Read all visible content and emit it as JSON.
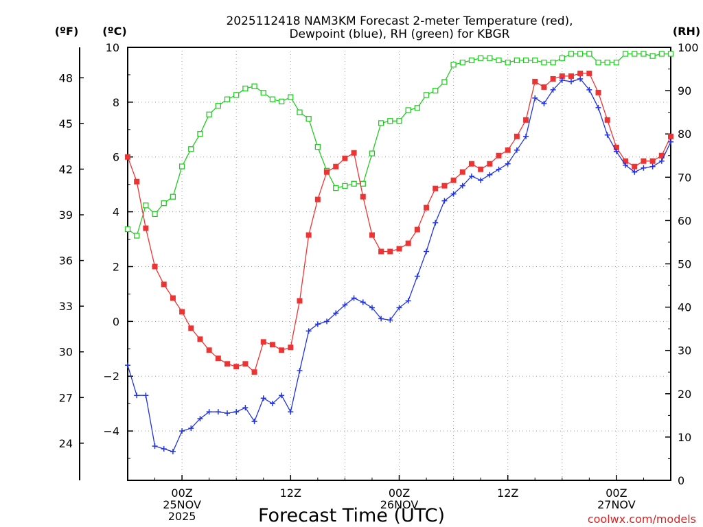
{
  "chart_data": {
    "type": "line",
    "title": [
      "2025112418 NAM3KM Forecast 2-meter Temperature (red),",
      "Dewpoint (blue), RH (green) for KBGR"
    ],
    "xlabel": "Forecast Time (UTC)",
    "credit": "coolwx.com/models",
    "axis_titles": {
      "fahrenheit": "(ºF)",
      "celsius": "(ºC)",
      "rh": "(RH)"
    },
    "x_hours_range": [
      -6,
      54
    ],
    "celsius_range": [
      -5.8,
      10
    ],
    "rh_range": [
      0,
      100
    ],
    "celsius_ticks": [
      "10",
      "8",
      "6",
      "4",
      "2",
      "0",
      "−2",
      "−4"
    ],
    "celsius_tick_values": [
      10,
      8,
      6,
      4,
      2,
      0,
      -2,
      -4
    ],
    "fahrenheit_ticks": [
      "48",
      "45",
      "42",
      "39",
      "36",
      "33",
      "30",
      "27",
      "24"
    ],
    "fahrenheit_tick_values": [
      48,
      45,
      42,
      39,
      36,
      33,
      30,
      27,
      24
    ],
    "rh_ticks": [
      "100",
      "90",
      "80",
      "70",
      "60",
      "50",
      "40",
      "30",
      "20",
      "10",
      "0"
    ],
    "rh_tick_values": [
      100,
      90,
      80,
      70,
      60,
      50,
      40,
      30,
      20,
      10,
      0
    ],
    "x_ticks": [
      {
        "hour": 0,
        "lines": [
          "00Z",
          "25NOV",
          "2025"
        ]
      },
      {
        "hour": 12,
        "lines": [
          "12Z"
        ]
      },
      {
        "hour": 24,
        "lines": [
          "00Z",
          "26NOV"
        ]
      },
      {
        "hour": 36,
        "lines": [
          "12Z"
        ]
      },
      {
        "hour": 48,
        "lines": [
          "00Z",
          "27NOV"
        ]
      }
    ],
    "colors": {
      "temperature": "#ee3333",
      "dewpoint": "#2233dd",
      "rh": "#22cc22",
      "grid": "#999999",
      "credit": "#dd2222"
    },
    "series": [
      {
        "name": "Temperature (°C)",
        "axis": "celsius",
        "hours": [
          -6,
          -5,
          -4,
          -3,
          -2,
          -1,
          0,
          1,
          2,
          3,
          4,
          5,
          6,
          7,
          8,
          9,
          10,
          11,
          12,
          13,
          14,
          15,
          16,
          17,
          18,
          19,
          20,
          21,
          22,
          23,
          24,
          25,
          26,
          27,
          28,
          29,
          30,
          31,
          32,
          33,
          34,
          35,
          36,
          37,
          38,
          39,
          40,
          41,
          42,
          43,
          44,
          45,
          46,
          47,
          48,
          49,
          50,
          51,
          52,
          53,
          54
        ],
        "values": [
          6.0,
          5.1,
          3.4,
          2.0,
          1.35,
          0.85,
          0.35,
          -0.25,
          -0.65,
          -1.05,
          -1.35,
          -1.55,
          -1.65,
          -1.55,
          -1.85,
          -0.75,
          -0.85,
          -1.05,
          -0.95,
          0.75,
          3.15,
          4.45,
          5.45,
          5.65,
          5.95,
          6.15,
          4.55,
          3.15,
          2.55,
          2.55,
          2.65,
          2.85,
          3.35,
          4.15,
          4.85,
          4.95,
          5.15,
          5.45,
          5.75,
          5.55,
          5.75,
          6.05,
          6.25,
          6.75,
          7.35,
          8.75,
          8.55,
          8.85,
          8.95,
          8.95,
          9.05,
          9.05,
          8.35,
          7.35,
          6.35,
          5.85,
          5.65,
          5.85,
          5.85,
          6.05,
          6.75
        ]
      },
      {
        "name": "Dewpoint (°C)",
        "axis": "celsius",
        "hours": [
          -6,
          -5,
          -4,
          -3,
          -2,
          -1,
          0,
          1,
          2,
          3,
          4,
          5,
          6,
          7,
          8,
          9,
          10,
          11,
          12,
          13,
          14,
          15,
          16,
          17,
          18,
          19,
          20,
          21,
          22,
          23,
          24,
          25,
          26,
          27,
          28,
          29,
          30,
          31,
          32,
          33,
          34,
          35,
          36,
          37,
          38,
          39,
          40,
          41,
          42,
          43,
          44,
          45,
          46,
          47,
          48,
          49,
          50,
          51,
          52,
          53,
          54
        ],
        "values": [
          -1.6,
          -2.7,
          -2.7,
          -4.55,
          -4.65,
          -4.75,
          -4.0,
          -3.9,
          -3.55,
          -3.3,
          -3.3,
          -3.35,
          -3.3,
          -3.15,
          -3.65,
          -2.8,
          -3.0,
          -2.7,
          -3.3,
          -1.8,
          -0.35,
          -0.1,
          0.0,
          0.3,
          0.6,
          0.85,
          0.7,
          0.5,
          0.1,
          0.05,
          0.5,
          0.75,
          1.65,
          2.55,
          3.6,
          4.4,
          4.65,
          4.95,
          5.3,
          5.15,
          5.35,
          5.55,
          5.75,
          6.25,
          6.75,
          8.15,
          7.95,
          8.45,
          8.8,
          8.75,
          8.85,
          8.45,
          7.8,
          6.8,
          6.2,
          5.7,
          5.45,
          5.6,
          5.65,
          5.85,
          6.55
        ]
      },
      {
        "name": "RH (%)",
        "axis": "rh",
        "hours": [
          -6,
          -5,
          -4,
          -3,
          -2,
          -1,
          0,
          1,
          2,
          3,
          4,
          5,
          6,
          7,
          8,
          9,
          10,
          11,
          12,
          13,
          14,
          15,
          16,
          17,
          18,
          19,
          20,
          21,
          22,
          23,
          24,
          25,
          26,
          27,
          28,
          29,
          30,
          31,
          32,
          33,
          34,
          35,
          36,
          37,
          38,
          39,
          40,
          41,
          42,
          43,
          44,
          45,
          46,
          47,
          48,
          49,
          50,
          51,
          52,
          53,
          54
        ],
        "values": [
          58,
          56.5,
          63.5,
          61.5,
          64,
          65.5,
          72.5,
          76.5,
          80,
          84.5,
          86.5,
          88,
          89,
          90.5,
          91,
          89.5,
          88,
          87.5,
          88.5,
          85,
          83.5,
          77,
          71.5,
          67.5,
          68,
          68.5,
          68.5,
          75.5,
          82.5,
          83,
          83,
          85.5,
          86,
          89,
          90,
          92,
          96,
          96.5,
          97,
          97.5,
          97.5,
          97,
          96.5,
          97,
          97,
          97,
          96.5,
          96.5,
          97.5,
          98.5,
          98.5,
          98.5,
          96.5,
          96.5,
          96.5,
          98.5,
          98.5,
          98.5,
          98,
          98.5,
          98.5
        ]
      }
    ]
  }
}
